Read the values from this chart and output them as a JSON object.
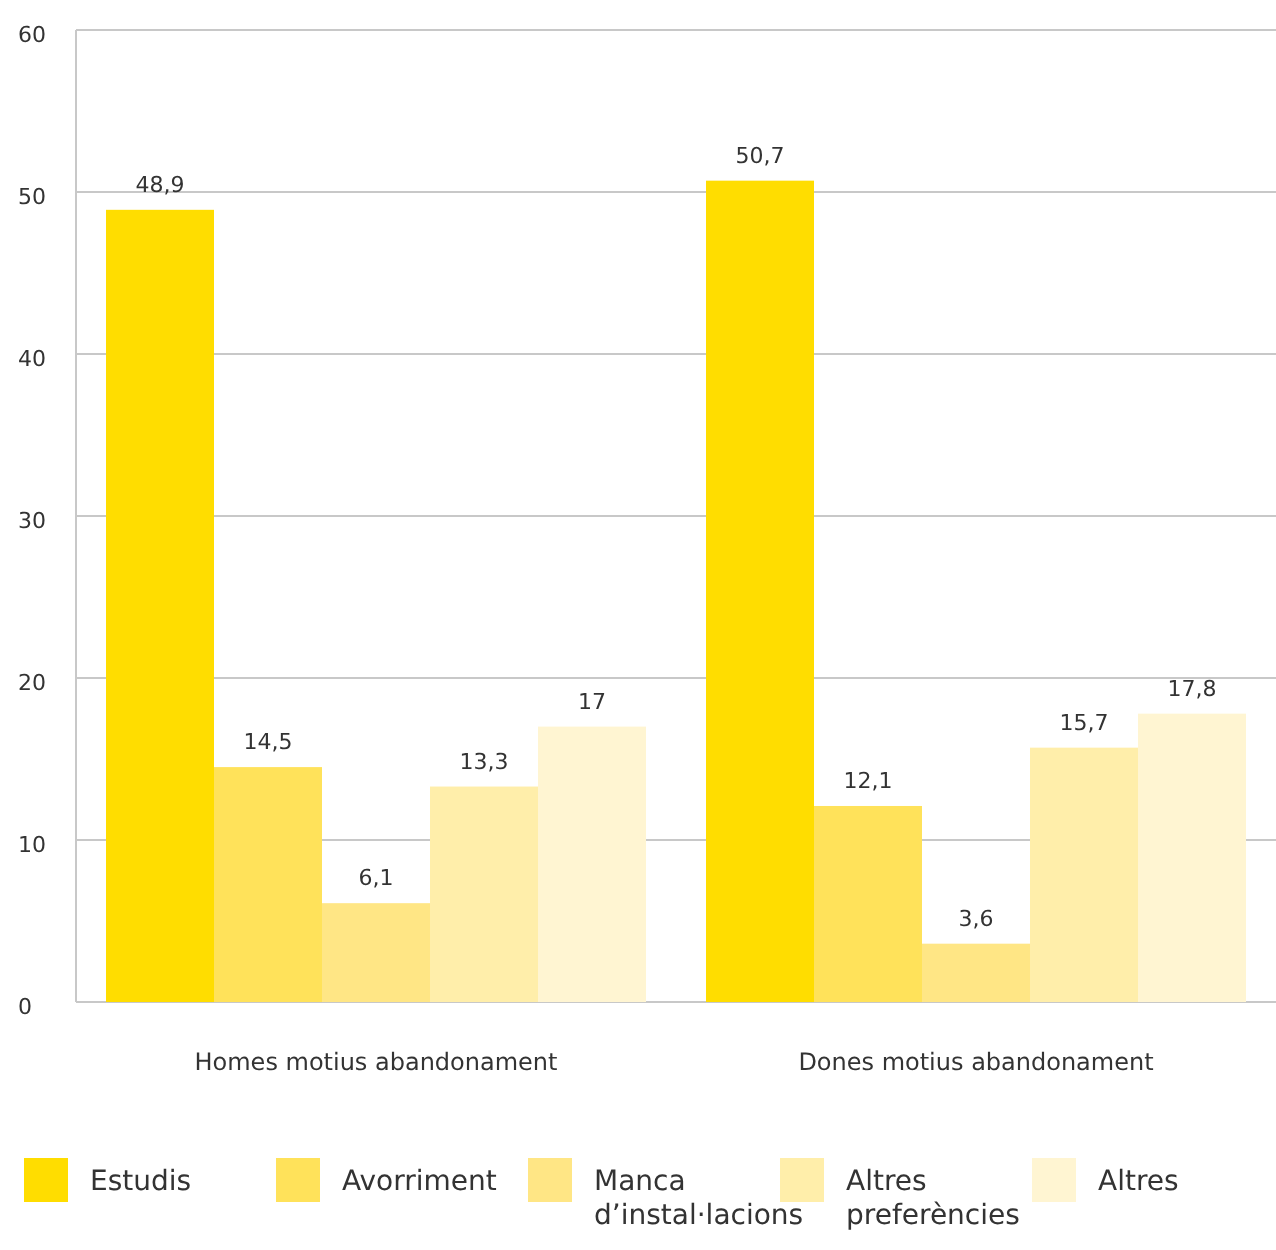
{
  "chart_data": {
    "type": "bar",
    "categories": [
      "Homes motius abandonament",
      "Dones motius abandonament"
    ],
    "series": [
      {
        "name": "Estudis",
        "color": "#ffdd00",
        "values": [
          48.9,
          50.7
        ],
        "value_labels": [
          "48,9",
          "50,7"
        ]
      },
      {
        "name": "Avorriment",
        "color": "#ffe25a",
        "values": [
          14.5,
          12.1
        ],
        "value_labels": [
          "14,5",
          "12,1"
        ]
      },
      {
        "name": "Manca d’instal·lacions",
        "color": "#ffe685",
        "values": [
          6.1,
          3.6
        ],
        "value_labels": [
          "6,1",
          "3,6"
        ]
      },
      {
        "name": "Altres preferències",
        "color": "#ffeeaa",
        "values": [
          13.3,
          15.7
        ],
        "value_labels": [
          "13,3",
          "15,7"
        ]
      },
      {
        "name": "Altres",
        "color": "#fff5d2",
        "values": [
          17,
          17.8
        ],
        "value_labels": [
          "17",
          "17,8"
        ]
      }
    ],
    "ylim": [
      0,
      60
    ],
    "yticks": [
      0,
      10,
      20,
      30,
      40,
      50,
      60
    ],
    "grid": "y",
    "legend": "bottom"
  }
}
